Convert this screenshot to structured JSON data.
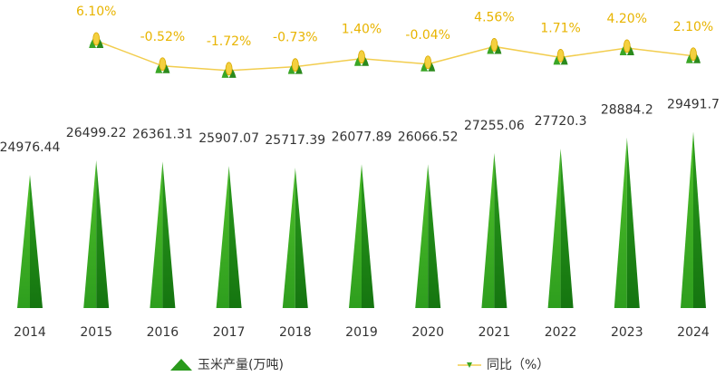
{
  "chart_data": {
    "type": "bar",
    "categories": [
      "2014",
      "2015",
      "2016",
      "2017",
      "2018",
      "2019",
      "2020",
      "2021",
      "2022",
      "2023",
      "2024"
    ],
    "series": [
      {
        "name": "玉米产量(万吨)",
        "type": "bar",
        "color": "#2a9a1c",
        "values": [
          24976.44,
          26499.22,
          26361.31,
          25907.07,
          25717.39,
          26077.89,
          26066.52,
          27255.06,
          27720.3,
          28884.2,
          29491.7
        ]
      },
      {
        "name": "同比（%）",
        "type": "line",
        "axis": "y2",
        "color": "#f2cd4e",
        "values": [
          null,
          6.1,
          -0.52,
          -1.72,
          -0.73,
          1.4,
          -0.04,
          4.56,
          1.71,
          4.2,
          2.1
        ],
        "value_labels": [
          null,
          "6.10%",
          "-0.52%",
          "-1.72%",
          "-0.73%",
          "1.40%",
          "-0.04%",
          "4.56%",
          "1.71%",
          "4.20%",
          "2.10%"
        ]
      }
    ],
    "ylim": [
      11000,
      30000
    ],
    "y2lim": [
      -4,
      8
    ],
    "legend": "bottom"
  }
}
